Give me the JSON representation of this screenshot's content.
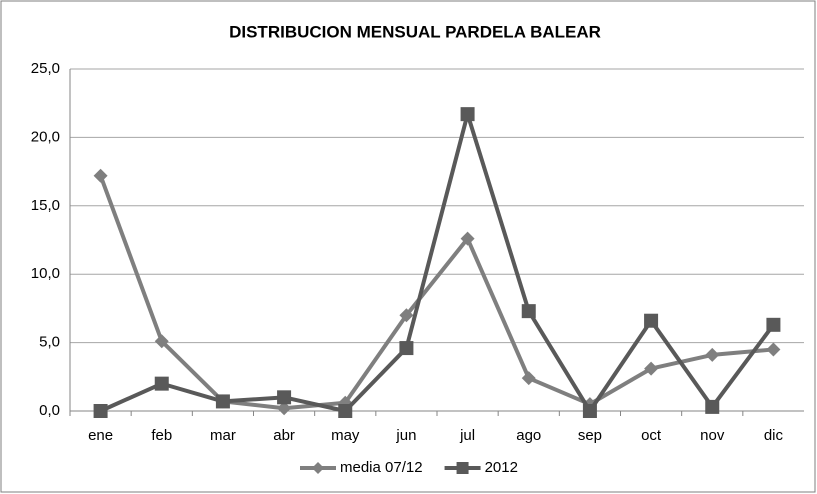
{
  "chart_data": {
    "type": "line",
    "title": "DISTRIBUCION MENSUAL PARDELA BALEAR",
    "categories": [
      "ene",
      "feb",
      "mar",
      "abr",
      "may",
      "jun",
      "jul",
      "ago",
      "sep",
      "oct",
      "nov",
      "dic"
    ],
    "series": [
      {
        "name": "media 07/12",
        "color": "#7f7f7f",
        "marker": "diamond",
        "values": [
          17.2,
          5.1,
          0.7,
          0.2,
          0.6,
          7.0,
          12.6,
          2.4,
          0.5,
          3.1,
          4.1,
          4.5
        ]
      },
      {
        "name": "2012",
        "color": "#595959",
        "marker": "square",
        "values": [
          0,
          2.0,
          0.7,
          1.0,
          0,
          4.6,
          21.7,
          7.3,
          0,
          6.6,
          0.3,
          6.3
        ]
      }
    ],
    "ylim": [
      0,
      25
    ],
    "yticks": [
      {
        "value": 0,
        "label": "0,0"
      },
      {
        "value": 5,
        "label": "5,0"
      },
      {
        "value": 10,
        "label": "10,0"
      },
      {
        "value": 15,
        "label": "15,0"
      },
      {
        "value": 20,
        "label": "20,0"
      },
      {
        "value": 25,
        "label": "25,0"
      }
    ],
    "grid": true,
    "legend": "bottom"
  }
}
